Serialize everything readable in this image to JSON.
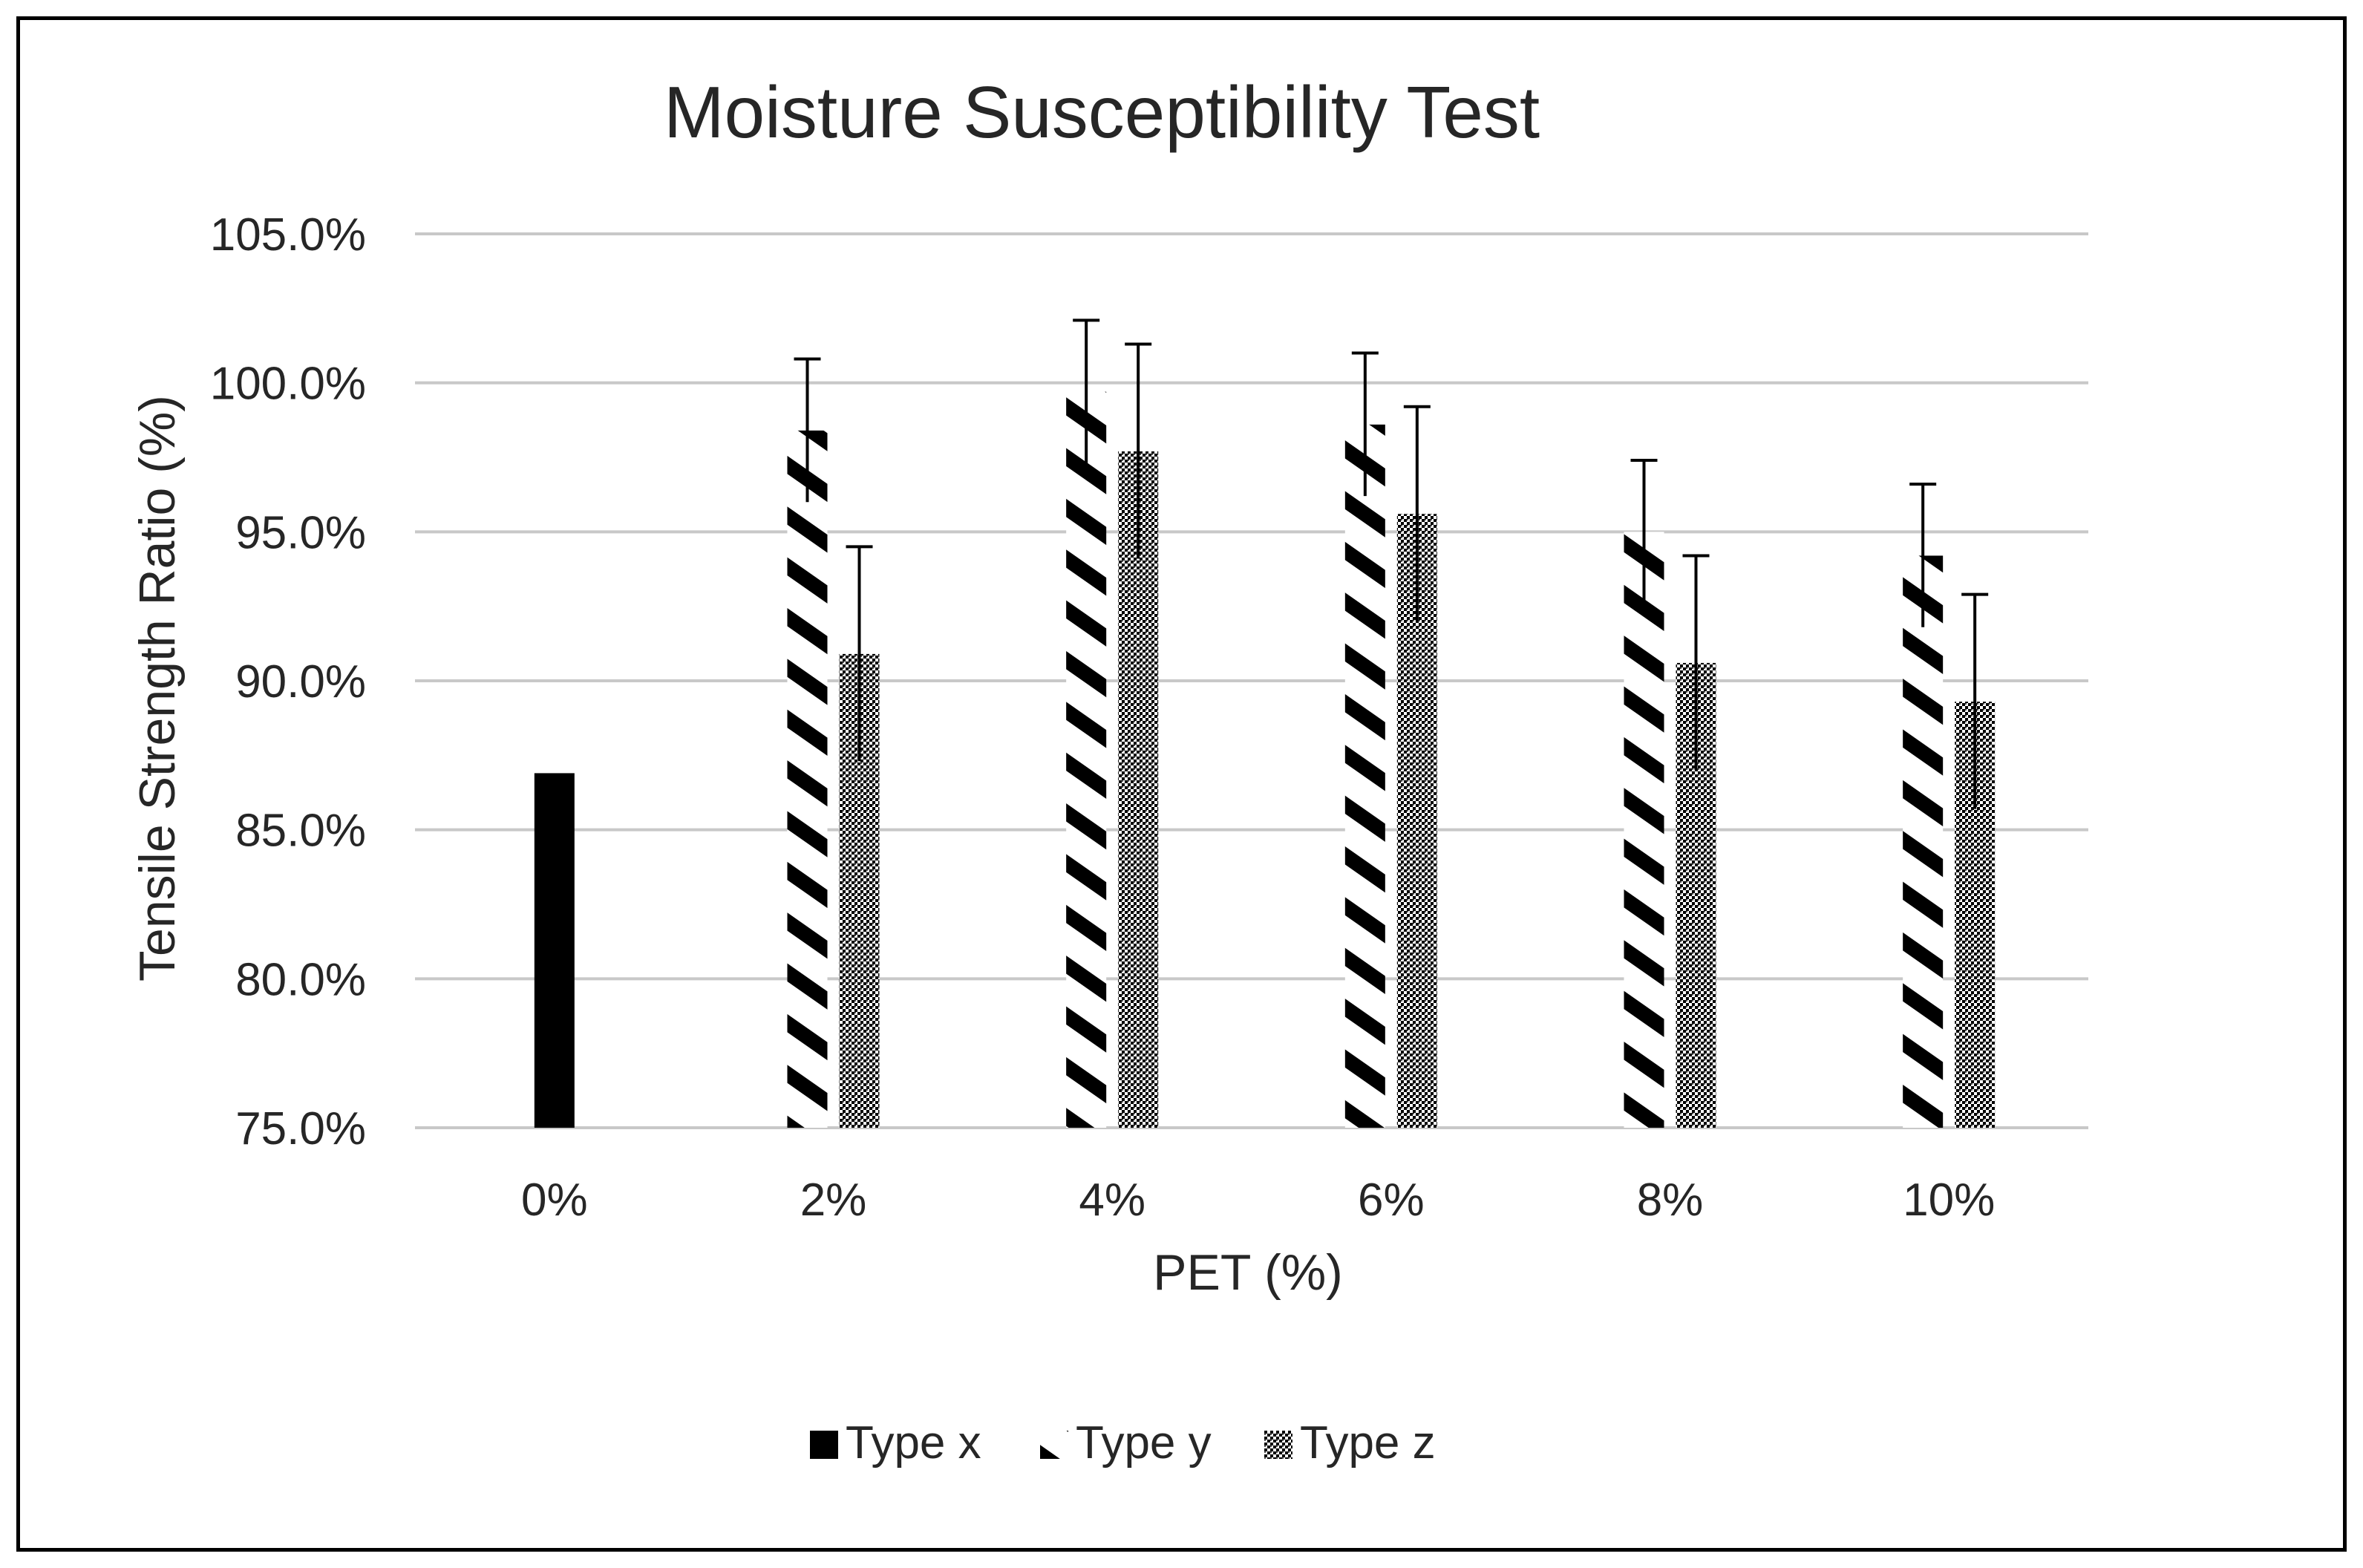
{
  "chart_data": {
    "type": "bar",
    "title": "Moisture Susceptibility Test",
    "xlabel": "PET (%)",
    "ylabel": "Tensile Strength Ratio (%)",
    "categories": [
      "0%",
      "2%",
      "4%",
      "6%",
      "8%",
      "10%"
    ],
    "ylim": [
      75.0,
      105.0
    ],
    "yticks": [
      75.0,
      80.0,
      85.0,
      90.0,
      95.0,
      100.0,
      105.0
    ],
    "ytick_labels": [
      "75.0%",
      "80.0%",
      "85.0%",
      "90.0%",
      "95.0%",
      "100.0%",
      "105.0%"
    ],
    "grid": true,
    "legend_position": "bottom",
    "series": [
      {
        "name": "Type x",
        "pattern": "solid",
        "values": [
          86.9,
          null,
          null,
          null,
          null,
          null
        ],
        "errors": [
          null,
          null,
          null,
          null,
          null,
          null
        ]
      },
      {
        "name": "Type y",
        "pattern": "diagonal-stripes",
        "values": [
          null,
          98.4,
          99.7,
          98.6,
          95.0,
          94.2
        ],
        "errors": [
          null,
          2.4,
          2.4,
          2.4,
          2.4,
          2.4
        ]
      },
      {
        "name": "Type z",
        "pattern": "dotted-checker",
        "values": [
          null,
          90.9,
          97.7,
          95.6,
          90.6,
          89.3
        ],
        "errors": [
          null,
          3.6,
          3.6,
          3.6,
          3.6,
          3.6
        ]
      }
    ],
    "colors": {
      "bar": "#000000",
      "grid": "#c8c8c8",
      "text": "#262626",
      "error": "#000000"
    }
  }
}
